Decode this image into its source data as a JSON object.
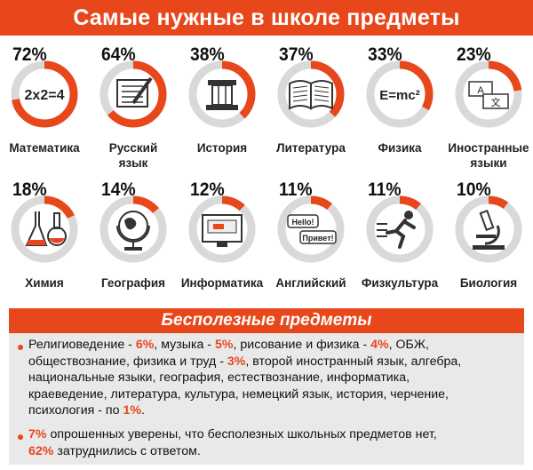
{
  "header": {
    "title": "Самые нужные в школе предметы"
  },
  "colors": {
    "accent": "#e8471c",
    "track": "#d9d9d9",
    "panel": "#e9e9e9"
  },
  "chart_data": {
    "type": "pie",
    "title": "Самые нужные в школе предметы",
    "categories": [
      "Математика",
      "Русский язык",
      "История",
      "Литература",
      "Физика",
      "Иностранные языки",
      "Химия",
      "География",
      "Информатика",
      "Английский",
      "Физкультура",
      "Биология"
    ],
    "values": [
      72,
      64,
      38,
      37,
      33,
      23,
      18,
      14,
      12,
      11,
      11,
      10
    ],
    "unit": "%"
  },
  "items": [
    {
      "pct": "72%",
      "label": "Математика",
      "icon": "formula-2x2-icon",
      "icon_text": "2x2=4"
    },
    {
      "pct": "64%",
      "label": "Русский\nязык",
      "icon": "writing-pen-icon"
    },
    {
      "pct": "38%",
      "label": "История",
      "icon": "column-icon"
    },
    {
      "pct": "37%",
      "label": "Литература",
      "icon": "open-book-icon"
    },
    {
      "pct": "33%",
      "label": "Физика",
      "icon": "emc2-icon",
      "icon_text": "E=mc²"
    },
    {
      "pct": "23%",
      "label": "Иностранные\nязыки",
      "icon": "translate-cards-icon",
      "icon_text": "A 文"
    },
    {
      "pct": "18%",
      "label": "Химия",
      "icon": "flasks-icon"
    },
    {
      "pct": "14%",
      "label": "География",
      "icon": "globe-icon"
    },
    {
      "pct": "12%",
      "label": "Информатика",
      "icon": "monitor-icon"
    },
    {
      "pct": "11%",
      "label": "Английский",
      "icon": "hello-bubbles-icon",
      "icon_text": "Hello! Привет!"
    },
    {
      "pct": "11%",
      "label": "Физкультура",
      "icon": "runner-icon"
    },
    {
      "pct": "10%",
      "label": "Биология",
      "icon": "microscope-icon"
    }
  ],
  "useless": {
    "title": "Бесполезные предметы",
    "p1_lines": [
      [
        [
          "Религиоведение - ",
          ""
        ],
        [
          "6%",
          "red"
        ],
        [
          ", музыка - ",
          ""
        ],
        [
          "5%",
          "red"
        ],
        [
          ", рисование и физика - ",
          ""
        ],
        [
          "4%",
          "red"
        ],
        [
          ", ОБЖ,",
          ""
        ]
      ],
      [
        [
          "обществознание, физика и труд - ",
          ""
        ],
        [
          "3%",
          "red"
        ],
        [
          ", второй иностранный язык, алгебра,",
          ""
        ]
      ],
      [
        [
          "национальные языки, география, естествознание, информатика,",
          ""
        ]
      ],
      [
        [
          "краеведение, литература, культура, немецкий язык, история, черчение,",
          ""
        ]
      ],
      [
        [
          "психология - по ",
          ""
        ],
        [
          "1%",
          "red"
        ],
        [
          ".",
          ""
        ]
      ]
    ],
    "p2_lines": [
      [
        [
          "7%",
          "red"
        ],
        [
          " опрошенных уверены, что бесполезных школьных предметов нет,",
          ""
        ]
      ],
      [
        [
          "62%",
          "red"
        ],
        [
          " затруднились с ответом.",
          ""
        ]
      ]
    ]
  }
}
